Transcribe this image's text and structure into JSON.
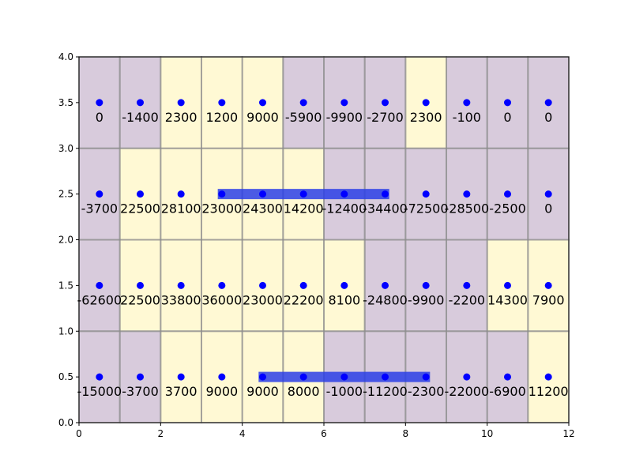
{
  "chart_data": {
    "type": "heatmap",
    "title": "",
    "xlabel": "",
    "ylabel": "",
    "xlim": [
      0,
      12
    ],
    "ylim": [
      0,
      4
    ],
    "x_ticks": [
      "0",
      "2",
      "4",
      "6",
      "8",
      "10",
      "12"
    ],
    "y_ticks": [
      "0.0",
      "0.5",
      "1.0",
      "1.5",
      "2.0",
      "2.5",
      "3.0",
      "3.5",
      "4.0"
    ],
    "colors": {
      "positive": "#fff9d4",
      "negative": "#d8cbdc",
      "point": "#0000ff",
      "highlight": "#2b3fe6",
      "grid": "#8c8c8c"
    },
    "rows": [
      {
        "y": 3.5,
        "values": [
          "0",
          "-1400",
          "2300",
          "1200",
          "9000",
          "-5900",
          "-9900",
          "-2700",
          "2300",
          "-100",
          "0",
          "0"
        ]
      },
      {
        "y": 2.5,
        "values": [
          "-3700",
          "22500",
          "28100",
          "23000",
          "24300",
          "14200",
          "-12400",
          "-34400",
          "-72500",
          "-28500",
          "-2500",
          "0"
        ]
      },
      {
        "y": 1.5,
        "values": [
          "-62600",
          "22500",
          "33800",
          "36000",
          "23000",
          "22200",
          "8100",
          "-24800",
          "-9900",
          "-2200",
          "14300",
          "7900"
        ]
      },
      {
        "y": 0.5,
        "values": [
          "-15000",
          "-3700",
          "3700",
          "9000",
          "9000",
          "8000",
          "-1000",
          "-11200",
          "-2300",
          "-22000",
          "-6900",
          "11200"
        ]
      }
    ],
    "highlights": [
      {
        "y": 2.5,
        "x_start": 3.4,
        "x_end": 7.6
      },
      {
        "y": 0.5,
        "x_start": 4.4,
        "x_end": 8.6
      }
    ]
  }
}
